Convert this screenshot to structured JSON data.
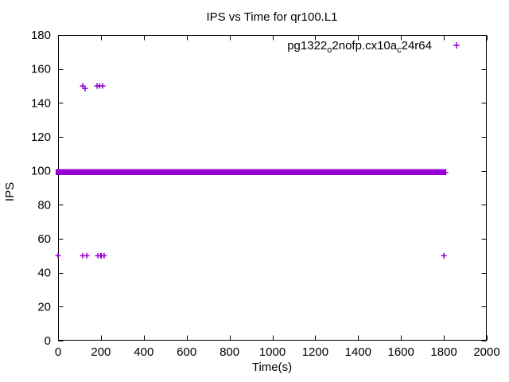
{
  "page": {
    "background": "#ffffff",
    "axis_color": "#000000",
    "text_color": "#000000"
  },
  "chart_data": {
    "type": "scatter",
    "title": "IPS vs Time for qr100.L1",
    "xlabel": "Time(s)",
    "ylabel": "IPS",
    "xlim": [
      0,
      2000
    ],
    "ylim": [
      0,
      180
    ],
    "xticks": [
      0,
      200,
      400,
      600,
      800,
      1000,
      1200,
      1400,
      1600,
      1800,
      2000
    ],
    "yticks": [
      0,
      20,
      40,
      60,
      80,
      100,
      120,
      140,
      160,
      180
    ],
    "grid": false,
    "tick_style": "inward-mirrored",
    "legend": {
      "position": "top-right-inside",
      "entries": [
        {
          "label_plain": "pg1322o2nofp.cx10ac24r64",
          "label_segments": [
            {
              "text": "pg1322",
              "sub": false
            },
            {
              "text": "o",
              "sub": true
            },
            {
              "text": "2nofp.cx10a",
              "sub": false
            },
            {
              "text": "c",
              "sub": true
            },
            {
              "text": "24r64",
              "sub": false
            }
          ],
          "marker": "plus",
          "color": "#9400D3"
        }
      ]
    },
    "series": [
      {
        "name": "pg1322o2nofp.cx10ac24r64",
        "marker": "plus",
        "color": "#9400D3",
        "dense_band": {
          "x_start": 0,
          "x_end": 1800,
          "y_center": 99,
          "y_low": 97.5,
          "y_high": 101,
          "description": "hundreds of overlapping + markers forming a thick solid horizontal band at IPS ~98-101 from t=0 to t=1800"
        },
        "points": [
          [
            0,
            50
          ],
          [
            115,
            50
          ],
          [
            134,
            50
          ],
          [
            186,
            50
          ],
          [
            199,
            50
          ],
          [
            202,
            50
          ],
          [
            215,
            50
          ],
          [
            115,
            150
          ],
          [
            126,
            148.5
          ],
          [
            182,
            150
          ],
          [
            193,
            150
          ],
          [
            208,
            150
          ],
          [
            1800,
            50
          ],
          [
            1808,
            99
          ]
        ]
      }
    ]
  }
}
